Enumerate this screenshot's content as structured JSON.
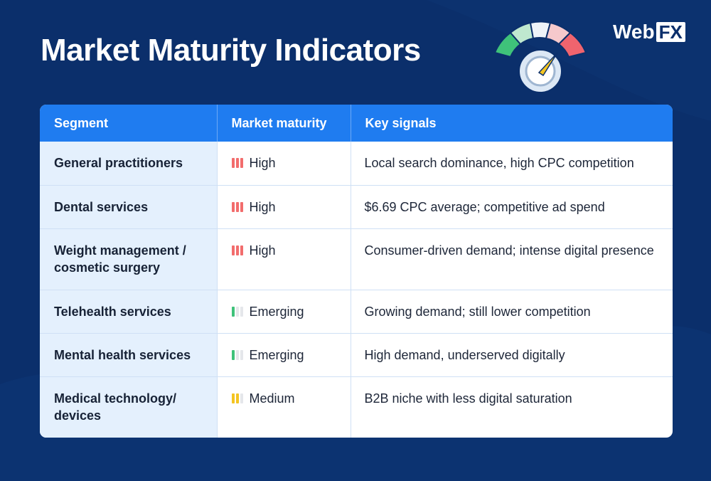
{
  "title": "Market Maturity Indicators",
  "logo": {
    "text": "Web",
    "badge": "FX"
  },
  "colors": {
    "background": "#0b2f6b",
    "header": "#1f7cf0",
    "segment_cell": "#e4f0fd",
    "high": "#f26d6d",
    "emerging": "#3fc27a",
    "medium": "#f4c522",
    "inactive": "#e5e7eb"
  },
  "gauge_icon": "speedometer-gauge-icon",
  "table": {
    "headers": [
      "Segment",
      "Market maturity",
      "Key signals"
    ],
    "rows": [
      {
        "segment": "General practitioners",
        "maturity": "High",
        "level": "high",
        "filled": 3,
        "signals": "Local search dominance, high CPC competition"
      },
      {
        "segment": "Dental services",
        "maturity": "High",
        "level": "high",
        "filled": 3,
        "signals": "$6.69 CPC average; competitive ad spend"
      },
      {
        "segment": "Weight management / cosmetic surgery",
        "maturity": "High",
        "level": "high",
        "filled": 3,
        "signals": "Consumer-driven demand; intense digital presence"
      },
      {
        "segment": "Telehealth services",
        "maturity": "Emerging",
        "level": "emerging",
        "filled": 1,
        "signals": "Growing demand; still lower competition"
      },
      {
        "segment": "Mental health services",
        "maturity": "Emerging",
        "level": "emerging",
        "filled": 1,
        "signals": "High demand, underserved digitally"
      },
      {
        "segment": "Medical technology/ devices",
        "maturity": "Medium",
        "level": "medium",
        "filled": 2,
        "signals": "B2B niche with less digital saturation"
      }
    ]
  }
}
